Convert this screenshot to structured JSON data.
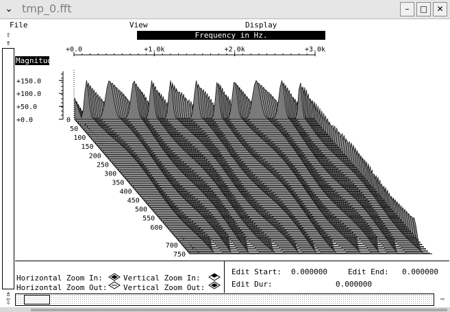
{
  "window": {
    "title": "tmp_0.fft",
    "menu_glyph": "⌄",
    "minimize_glyph": "–",
    "maximize_glyph": "□",
    "close_glyph": "✕"
  },
  "menubar": {
    "items": [
      "File",
      "View",
      "Display"
    ]
  },
  "plot": {
    "x_axis_title": "Frequency in Hz.",
    "y_axis_title": "Magnitud",
    "x_ticks": [
      "+0.0",
      "+1.0k",
      "+2.0k",
      "+3.0k"
    ],
    "y_ticks": [
      "+150.0",
      "+100.0",
      "+50.0",
      "+0.0"
    ],
    "depth_ticks": [
      "0",
      "50",
      "100",
      "150",
      "200",
      "250",
      "300",
      "350",
      "400",
      "450",
      "500",
      "550",
      "600",
      "700",
      "750"
    ]
  },
  "chart_data": {
    "type": "area",
    "x_range": [
      0,
      3000
    ],
    "y_range": [
      0,
      150
    ],
    "peak_count": 11,
    "peak_height": 150,
    "frame_count": 750
  },
  "controls": {
    "h_zoom_in": "Horizontal Zoom In:",
    "h_zoom_out": "Horizontal Zoom Out:",
    "v_zoom_in": "Vertical Zoom In:",
    "v_zoom_out": "Vertical Zoom Out:",
    "edit_start_label": "Edit Start:",
    "edit_start_value": "0.000000",
    "edit_end_label": "Edit End:",
    "edit_end_value": "0.000000",
    "edit_dur_label": "Edit Dur:",
    "edit_dur_value": "0.000000"
  }
}
